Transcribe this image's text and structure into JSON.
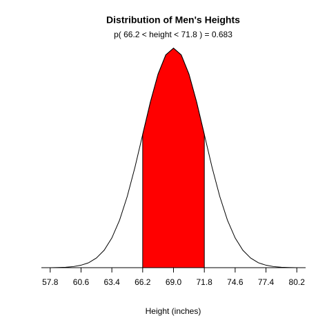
{
  "chart_data": {
    "type": "density",
    "title": "Distribution of Men's Heights",
    "subtitle": "p( 66.2 < height < 71.8 ) = 0.683",
    "x_label": "Height (inches)",
    "x": [
      57.8,
      58.5,
      59.2,
      59.9,
      60.6,
      61.3,
      62.0,
      62.7,
      63.4,
      64.1,
      64.8,
      65.5,
      66.2,
      66.9,
      67.6,
      68.3,
      69.0,
      69.7,
      70.4,
      71.1,
      71.8,
      72.5,
      73.2,
      73.9,
      74.6,
      75.3,
      76.0,
      76.7,
      77.4,
      78.1,
      78.8,
      79.5,
      80.2
    ],
    "values": [
      0.0,
      0.0001,
      0.0003,
      0.0007,
      0.0016,
      0.0032,
      0.0063,
      0.0113,
      0.0193,
      0.0308,
      0.0463,
      0.0652,
      0.0864,
      0.1075,
      0.1257,
      0.1381,
      0.1425,
      0.1381,
      0.1257,
      0.1075,
      0.0864,
      0.0652,
      0.0463,
      0.0308,
      0.0193,
      0.0113,
      0.0063,
      0.0032,
      0.0016,
      0.0007,
      0.0003,
      0.0001,
      0.0
    ],
    "color": "#000000",
    "shade_range": [
      66.2,
      71.8
    ],
    "shade_color": "#ff0000",
    "xlim": [
      57,
      81
    ],
    "ylim": [
      0,
      0.15
    ],
    "xticks": [
      57.8,
      60.6,
      63.4,
      66.2,
      {
        "value": 69,
        "label": "69.0"
      },
      71.8,
      74.6,
      77.4,
      80.2
    ]
  }
}
